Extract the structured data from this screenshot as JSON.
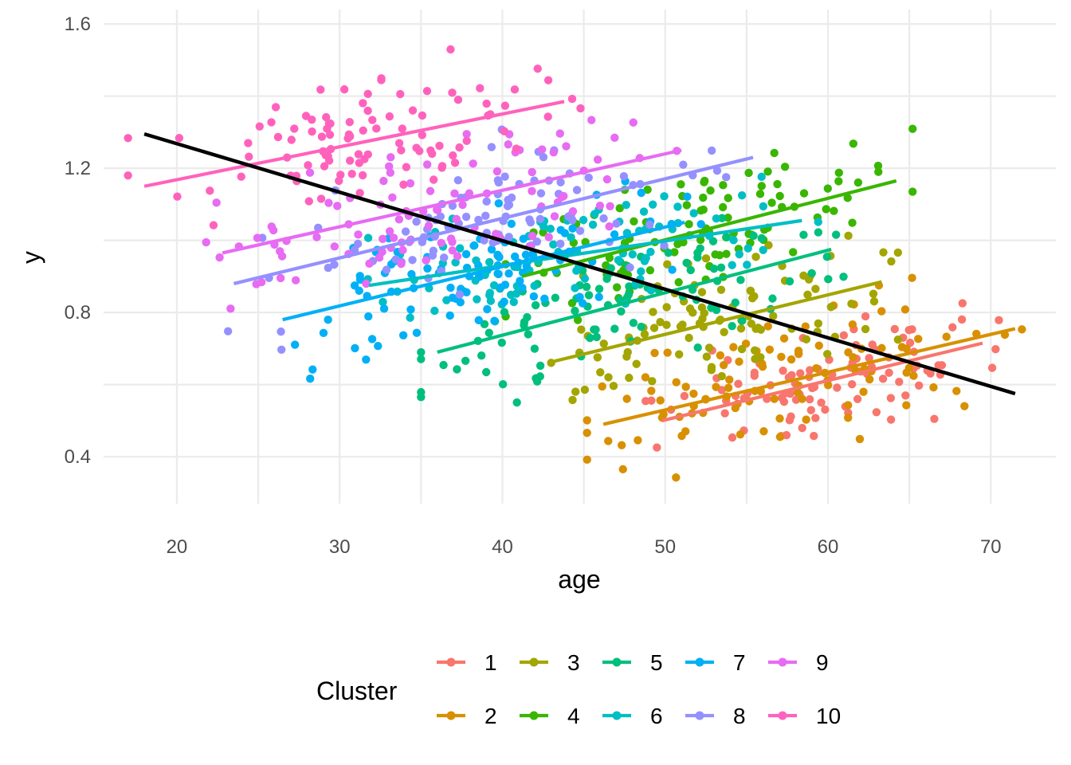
{
  "chart_data": {
    "type": "scatter",
    "xlabel": "age",
    "ylabel": "y",
    "xlim": [
      15.5,
      74
    ],
    "ylim": [
      0.27,
      1.64
    ],
    "x_ticks": [
      20,
      30,
      40,
      50,
      60,
      70
    ],
    "y_ticks": [
      0.4,
      0.8,
      1.2,
      1.6
    ],
    "y_tick_labels": [
      "0.4",
      "0.8",
      "1.2",
      "1.6"
    ],
    "grid": true,
    "legend": {
      "title": "Cluster",
      "position": "bottom"
    },
    "overall_fit": {
      "color": "#000000",
      "x": [
        18,
        71.5
      ],
      "y": [
        1.295,
        0.575
      ]
    },
    "series": [
      {
        "name": "1",
        "color": "#F8766D",
        "fit": {
          "x": [
            49.8,
            69.5
          ],
          "y": [
            0.5,
            0.715
          ]
        },
        "center": [
          60,
          0.62
        ],
        "spread": [
          9,
          0.1
        ]
      },
      {
        "name": "2",
        "color": "#D89000",
        "fit": {
          "x": [
            46.2,
            71.5
          ],
          "y": [
            0.49,
            0.755
          ]
        },
        "center": [
          58,
          0.6
        ],
        "spread": [
          12,
          0.12
        ]
      },
      {
        "name": "3",
        "color": "#A3A500",
        "fit": {
          "x": [
            43.2,
            63.3
          ],
          "y": [
            0.665,
            0.885
          ]
        },
        "center": [
          53,
          0.77
        ],
        "spread": [
          10,
          0.12
        ]
      },
      {
        "name": "4",
        "color": "#39B600",
        "fit": {
          "x": [
            41.2,
            64.2
          ],
          "y": [
            0.9,
            1.165
          ]
        },
        "center": [
          52,
          1.0
        ],
        "spread": [
          11,
          0.12
        ]
      },
      {
        "name": "5",
        "color": "#00BF7D",
        "fit": {
          "x": [
            36.0,
            60.2
          ],
          "y": [
            0.69,
            0.975
          ]
        },
        "center": [
          47,
          0.82
        ],
        "spread": [
          11,
          0.12
        ]
      },
      {
        "name": "6",
        "color": "#00BFC4",
        "fit": {
          "x": [
            31.8,
            58.4
          ],
          "y": [
            0.875,
            1.055
          ]
        },
        "center": [
          45,
          0.97
        ],
        "spread": [
          12,
          0.12
        ]
      },
      {
        "name": "7",
        "color": "#00B0F6",
        "fit": {
          "x": [
            26.5,
            51.2
          ],
          "y": [
            0.78,
            1.05
          ]
        },
        "center": [
          39,
          0.9
        ],
        "spread": [
          11,
          0.13
        ]
      },
      {
        "name": "8",
        "color": "#9590FF",
        "fit": {
          "x": [
            23.5,
            55.4
          ],
          "y": [
            0.88,
            1.23
          ]
        },
        "center": [
          39,
          1.04
        ],
        "spread": [
          13,
          0.12
        ]
      },
      {
        "name": "9",
        "color": "#E76BF3",
        "fit": {
          "x": [
            22.8,
            51.0
          ],
          "y": [
            0.965,
            1.25
          ]
        },
        "center": [
          37,
          1.1
        ],
        "spread": [
          12,
          0.12
        ]
      },
      {
        "name": "10",
        "color": "#FF62BC",
        "fit": {
          "x": [
            18.0,
            43.8
          ],
          "y": [
            1.15,
            1.385
          ]
        },
        "center": [
          31,
          1.26
        ],
        "spread": [
          11,
          0.12
        ]
      }
    ]
  }
}
